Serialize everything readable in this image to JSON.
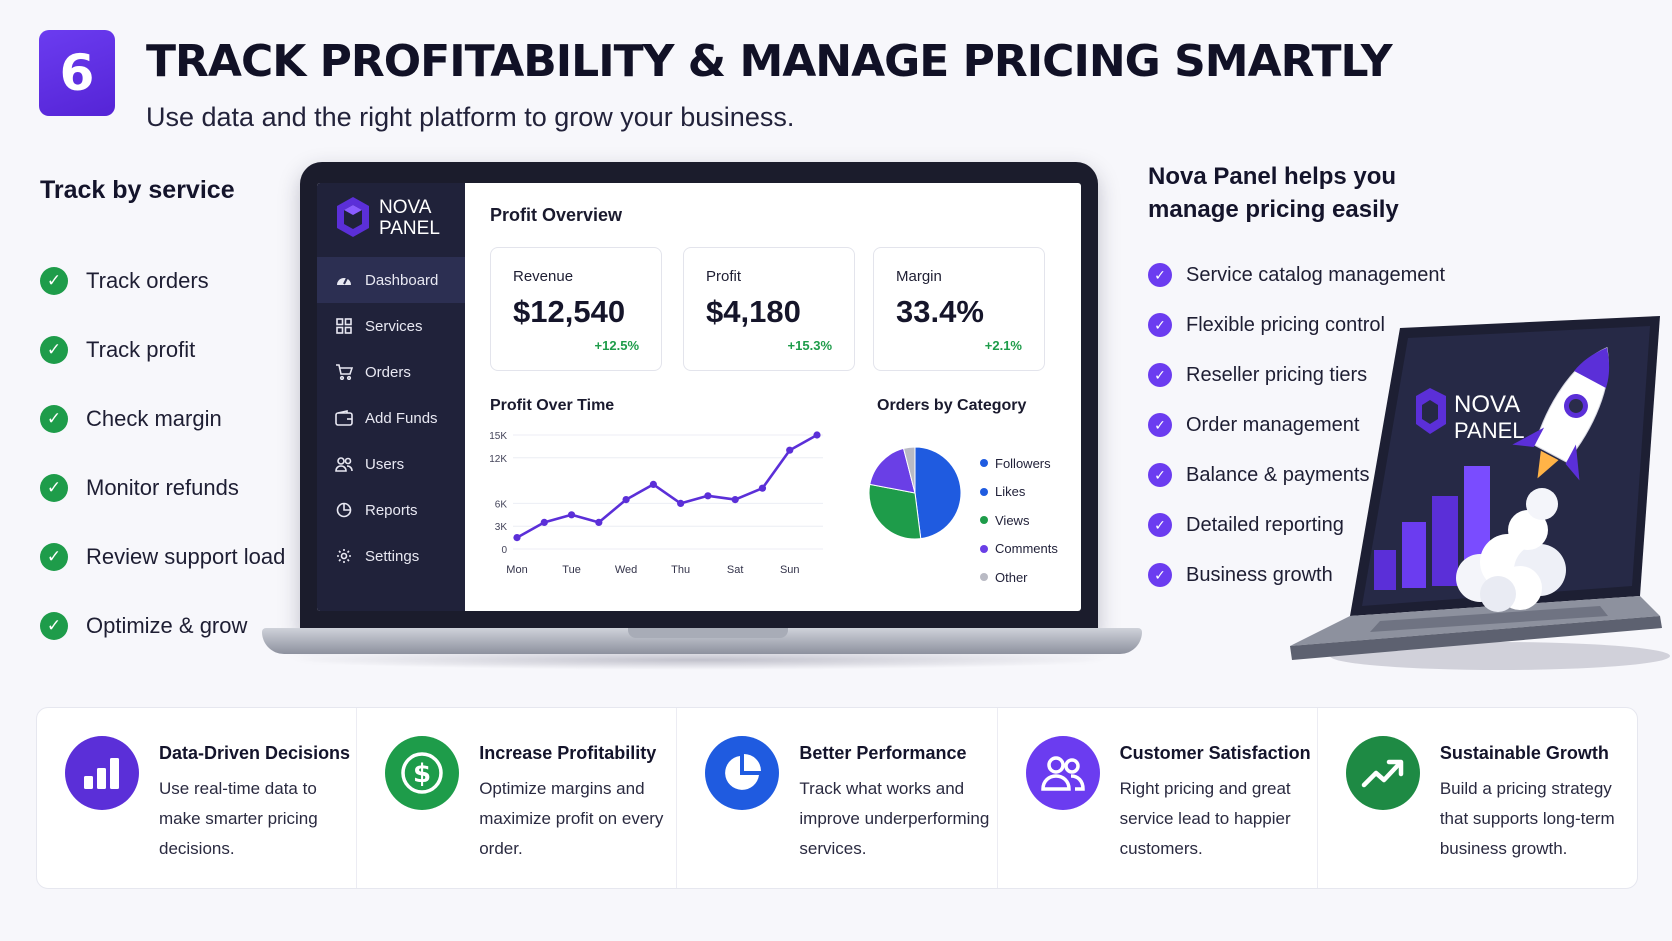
{
  "header": {
    "step_number": "6",
    "title": "TRACK PROFITABILITY & MANAGE PRICING SMARTLY",
    "subtitle": "Use data and the right platform to grow your business."
  },
  "left_panel": {
    "heading": "Track by service",
    "items": [
      "Track orders",
      "Track profit",
      "Check margin",
      "Monitor refunds",
      "Review support load",
      "Optimize & grow"
    ]
  },
  "dashboard": {
    "brand": {
      "line1": "NOVA",
      "line2": "PANEL"
    },
    "nav": [
      {
        "label": "Dashboard",
        "icon": "gauge-icon",
        "active": true
      },
      {
        "label": "Services",
        "icon": "grid-icon",
        "active": false
      },
      {
        "label": "Orders",
        "icon": "cart-icon",
        "active": false
      },
      {
        "label": "Add Funds",
        "icon": "wallet-icon",
        "active": false
      },
      {
        "label": "Users",
        "icon": "users-icon",
        "active": false
      },
      {
        "label": "Reports",
        "icon": "pie-icon",
        "active": false
      },
      {
        "label": "Settings",
        "icon": "gear-icon",
        "active": false
      }
    ],
    "overview_title": "Profit Overview",
    "kpis": [
      {
        "label": "Revenue",
        "value": "$12,540",
        "change": "+12.5%"
      },
      {
        "label": "Profit",
        "value": "$4,180",
        "change": "+15.3%"
      },
      {
        "label": "Margin",
        "value": "33.4%",
        "change": "+2.1%"
      }
    ],
    "line_chart_title": "Profit Over Time",
    "pie_chart_title": "Orders by Category"
  },
  "chart_data": [
    {
      "type": "line",
      "title": "Profit Over Time",
      "x": [
        "Mon",
        "",
        "Tue",
        "",
        "Wed",
        "",
        "Thu",
        "",
        "Sat",
        "",
        "Sun",
        ""
      ],
      "x_tick_labels": [
        "Mon",
        "Tue",
        "Wed",
        "Thu",
        "Sat",
        "Sun"
      ],
      "y_tick_labels": [
        "0",
        "3K",
        "6K",
        "12K",
        "15K"
      ],
      "y_ticks": [
        0,
        3,
        6,
        12,
        15
      ],
      "values": [
        1.5,
        3.5,
        4.5,
        3.5,
        6.5,
        8.5,
        6.0,
        7.0,
        6.5,
        8.0,
        13.0,
        15.0
      ],
      "ylim": [
        0,
        15
      ],
      "color": "#5b2fd8",
      "grid": true
    },
    {
      "type": "pie",
      "title": "Orders by Category",
      "categories": [
        "Followers",
        "Likes",
        "Views",
        "Comments",
        "Other"
      ],
      "values": [
        48,
        0,
        30,
        18,
        4
      ],
      "colors": [
        "#1f5be0",
        "#1f5be0",
        "#1e9c4a",
        "#6a3fe6",
        "#b9bac4"
      ],
      "legend": "right"
    }
  ],
  "right_panel": {
    "heading": "Nova Panel helps you manage pricing easily",
    "items": [
      "Service catalog management",
      "Flexible pricing control",
      "Reseller pricing tiers",
      "Order management",
      "Balance & payments",
      "Detailed reporting",
      "Business growth"
    ],
    "laptop_brand": {
      "line1": "NOVA",
      "line2": "PANEL"
    }
  },
  "benefits": [
    {
      "title": "Data-Driven Decisions",
      "text": "Use real-time data to make smarter pricing decisions.",
      "icon": "bar-chart-icon",
      "color": "#5b2fd8"
    },
    {
      "title": "Increase Profitability",
      "text": "Optimize margins and maximize profit on every order.",
      "icon": "dollar-icon",
      "color": "#1e9c4a"
    },
    {
      "title": "Better Performance",
      "text": "Track what works and improve underperforming services.",
      "icon": "pie-icon",
      "color": "#1f5be0"
    },
    {
      "title": "Customer Satisfaction",
      "text": "Right pricing and great service lead to happier customers.",
      "icon": "users-icon",
      "color": "#6b3cf0"
    },
    {
      "title": "Sustainable Growth",
      "text": "Build a pricing strategy that supports long-term business growth.",
      "icon": "trend-up-icon",
      "color": "#1e8a44"
    }
  ]
}
